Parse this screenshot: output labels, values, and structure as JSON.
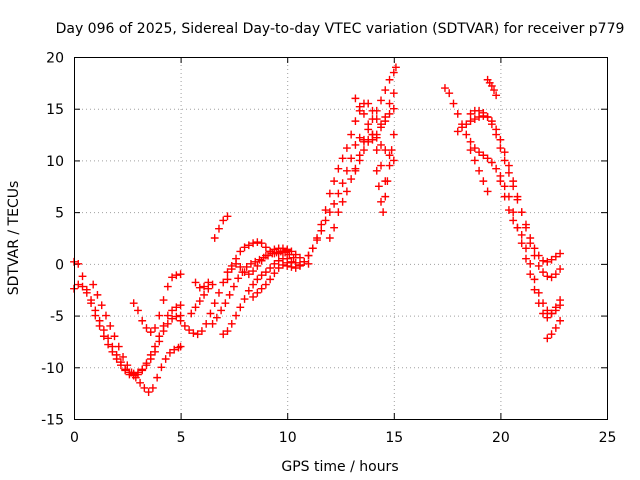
{
  "chart_data": {
    "type": "scatter",
    "title": "Day 096 of 2025, Sidereal Day-to-day VTEC variation (SDTVAR) for receiver p779",
    "xlabel": "GPS time / hours",
    "ylabel": "SDTVAR / TECUs",
    "xlim": [
      0,
      25
    ],
    "ylim": [
      -15,
      20
    ],
    "xticks": [
      0,
      5,
      10,
      15,
      20,
      25
    ],
    "yticks": [
      -15,
      -10,
      -5,
      0,
      5,
      10,
      15,
      20
    ],
    "xtick_labels": [
      "0",
      "5",
      "10",
      "15",
      "20",
      "25"
    ],
    "ytick_labels": [
      "-15",
      "-10",
      "-5",
      "0",
      "5",
      "10",
      "15",
      "20"
    ],
    "grid": true,
    "marker": "+",
    "marker_color": "#ff0000",
    "series": [
      {
        "x": [
          0.0,
          0.2,
          0.4,
          0.6,
          0.8,
          1.0,
          1.2,
          1.4,
          1.6,
          1.8,
          2.0,
          2.2,
          2.4,
          2.6,
          2.8,
          3.0,
          3.2,
          3.4,
          3.6,
          3.8,
          4.0,
          4.2,
          4.4,
          4.6,
          4.8,
          5.0
        ],
        "y": [
          0.2,
          0.0,
          -1.2,
          -2.5,
          -3.8,
          -5.0,
          -6.0,
          -7.0,
          -7.8,
          -8.5,
          -9.2,
          -9.8,
          -10.3,
          -10.7,
          -10.8,
          -10.7,
          -10.3,
          -9.6,
          -8.8,
          -8.0,
          -7.0,
          -6.0,
          -5.0,
          -4.5,
          -4.2,
          -4.0
        ]
      },
      {
        "x": [
          0.0,
          0.2,
          0.4,
          0.6,
          0.8,
          1.0,
          1.2,
          1.4,
          1.6,
          1.8,
          2.0,
          2.2,
          2.4,
          2.6,
          2.8,
          3.0,
          3.2,
          3.4,
          3.6,
          3.8,
          4.0,
          4.2,
          4.4,
          4.6,
          4.8,
          5.0
        ],
        "y": [
          -2.4,
          -2.0,
          -2.2,
          -2.8,
          -3.5,
          -4.5,
          -5.5,
          -6.4,
          -7.2,
          -8.0,
          -8.8,
          -9.5,
          -10.2,
          -10.5,
          -10.6,
          -10.5,
          -10.2,
          -9.8,
          -9.2,
          -8.5,
          -7.5,
          -6.5,
          -5.8,
          -5.3,
          -5.1,
          -5.0
        ]
      },
      {
        "x": [
          0.9,
          1.1,
          1.3,
          1.5,
          1.7,
          1.9,
          2.1,
          2.3,
          2.5,
          2.7,
          2.9,
          3.1,
          3.3,
          3.5,
          3.7,
          3.9,
          4.1,
          4.3,
          4.5,
          4.7,
          4.9,
          5.0
        ],
        "y": [
          -2.0,
          -3.0,
          -4.0,
          -5.0,
          -6.0,
          -7.0,
          -8.0,
          -9.0,
          -9.8,
          -10.5,
          -11.0,
          -11.5,
          -12.0,
          -12.4,
          -12.0,
          -11.0,
          -10.0,
          -9.2,
          -8.6,
          -8.3,
          -8.1,
          -8.0
        ]
      },
      {
        "x": [
          2.8,
          3.0,
          3.2,
          3.4,
          3.6,
          3.8,
          4.0,
          4.2,
          4.4,
          4.6,
          4.8,
          5.0
        ],
        "y": [
          -3.8,
          -4.5,
          -5.5,
          -6.2,
          -6.6,
          -6.2,
          -5.0,
          -3.5,
          -2.2,
          -1.3,
          -1.1,
          -1.0
        ]
      },
      {
        "x": [
          5.0,
          5.2,
          5.4,
          5.6,
          5.8,
          6.0,
          6.2,
          6.4,
          6.6,
          6.8,
          7.0,
          7.2,
          7.4,
          7.6,
          7.8,
          8.0,
          8.2,
          8.4,
          8.6,
          8.8,
          9.0,
          9.2,
          9.4,
          9.6,
          9.8,
          10.0
        ],
        "y": [
          -5.5,
          -6.0,
          -6.4,
          -6.7,
          -6.8,
          -6.5,
          -5.8,
          -4.8,
          -3.8,
          -2.8,
          -1.8,
          -0.8,
          -0.2,
          0.0,
          -0.3,
          -0.8,
          -1.0,
          -0.7,
          -0.2,
          0.3,
          0.8,
          1.2,
          1.4,
          1.5,
          1.5,
          1.4
        ]
      },
      {
        "x": [
          6.5,
          6.7,
          6.9,
          7.1,
          7.3,
          7.5,
          7.7,
          7.9,
          8.1,
          8.3,
          8.5,
          8.7,
          8.9,
          9.1,
          9.3,
          9.5,
          9.7,
          9.9,
          10.1,
          10.3
        ],
        "y": [
          -5.8,
          -5.2,
          -4.5,
          -3.8,
          -3.0,
          -2.2,
          -1.4,
          -0.8,
          -0.3,
          0.0,
          0.2,
          0.4,
          0.6,
          0.8,
          1.0,
          1.1,
          1.2,
          1.1,
          0.9,
          0.6
        ]
      },
      {
        "x": [
          7.0,
          7.2,
          7.4,
          7.6,
          7.8,
          8.0,
          8.2,
          8.4,
          8.6,
          8.8,
          9.0,
          9.2,
          9.4,
          9.6,
          9.8,
          10.0
        ],
        "y": [
          -6.8,
          -6.5,
          -5.8,
          -5.0,
          -4.2,
          -3.4,
          -2.6,
          -2.0,
          -1.5,
          -1.1,
          -0.8,
          -0.4,
          0.0,
          0.3,
          0.5,
          0.5
        ]
      },
      {
        "x": [
          8.4,
          8.6,
          8.8,
          9.0,
          9.2,
          9.4,
          9.6,
          9.8,
          10.0,
          10.2,
          10.4,
          10.6
        ],
        "y": [
          -3.2,
          -2.8,
          -2.4,
          -2.0,
          -1.5,
          -0.9,
          -0.4,
          -0.1,
          0.1,
          0.2,
          0.1,
          -0.1
        ]
      },
      {
        "x": [
          7.2,
          7.4,
          7.6,
          7.8,
          8.0,
          8.2,
          8.4,
          8.6,
          8.8,
          9.0,
          9.2,
          9.4,
          9.6,
          9.8,
          10.0,
          10.2,
          10.4,
          10.6,
          10.8,
          11.0
        ],
        "y": [
          -1.5,
          -0.5,
          0.5,
          1.2,
          1.6,
          1.8,
          2.0,
          2.1,
          2.0,
          1.6,
          1.2,
          1.0,
          1.0,
          1.2,
          1.3,
          1.2,
          0.9,
          0.6,
          0.2,
          0.0
        ]
      },
      {
        "x": [
          6.6,
          6.8,
          7.0,
          7.2
        ],
        "y": [
          2.5,
          3.4,
          4.2,
          4.6
        ]
      },
      {
        "x": [
          5.5,
          5.7,
          5.9,
          6.1,
          6.3,
          6.5
        ],
        "y": [
          -4.8,
          -4.2,
          -3.6,
          -3.0,
          -2.4,
          -2.0
        ]
      },
      {
        "x": [
          5.7,
          5.9,
          6.1,
          6.3
        ],
        "y": [
          -1.8,
          -2.3,
          -2.2,
          -1.8
        ]
      },
      {
        "x": [
          10.0,
          10.2,
          10.4,
          10.6,
          10.8,
          11.0,
          11.2,
          11.4,
          11.6,
          11.8,
          12.0,
          12.2,
          12.4,
          12.6,
          12.8,
          13.0,
          13.2,
          13.4,
          13.6,
          13.8,
          14.0,
          14.2,
          14.4,
          14.6,
          14.8,
          15.0
        ],
        "y": [
          -0.2,
          -0.3,
          -0.4,
          -0.2,
          0.2,
          0.8,
          1.5,
          2.5,
          3.8,
          5.2,
          6.8,
          8.0,
          9.2,
          10.2,
          11.2,
          12.5,
          13.8,
          14.8,
          15.5,
          15.5,
          14.8,
          14.0,
          13.5,
          13.8,
          14.5,
          15.0
        ]
      },
      {
        "x": [
          10.8,
          11.0,
          11.2,
          11.4,
          11.6,
          11.8,
          12.0,
          12.2,
          12.4,
          12.6,
          12.8,
          13.0,
          13.2,
          13.4,
          13.6,
          13.8,
          14.0,
          14.2,
          14.4,
          14.6,
          14.8,
          15.0
        ],
        "y": [
          0.2,
          0.8,
          1.5,
          2.3,
          3.2,
          4.2,
          5.0,
          5.8,
          6.8,
          7.8,
          9.0,
          10.2,
          11.5,
          12.2,
          12.0,
          11.8,
          12.0,
          12.5,
          13.2,
          14.2,
          15.5,
          16.5
        ]
      },
      {
        "x": [
          12.0,
          12.2,
          12.4,
          12.6,
          12.8,
          13.0,
          13.2,
          13.4,
          13.6,
          13.8,
          14.0,
          14.2,
          14.4,
          14.6,
          14.8,
          15.0,
          15.1
        ],
        "y": [
          2.5,
          3.5,
          5.0,
          6.0,
          7.0,
          8.2,
          9.2,
          10.5,
          11.8,
          13.0,
          14.0,
          14.8,
          15.8,
          16.8,
          17.8,
          18.5,
          19.0
        ]
      },
      {
        "x": [
          13.2,
          13.4,
          13.6,
          13.8,
          14.0,
          14.2,
          14.4,
          14.6,
          14.8,
          15.0
        ],
        "y": [
          9.0,
          10.0,
          11.0,
          12.0,
          12.5,
          12.2,
          11.5,
          11.0,
          10.5,
          10.0
        ]
      },
      {
        "x": [
          14.2,
          14.3,
          14.4,
          14.5,
          14.6,
          14.7,
          14.8,
          14.9,
          15.0
        ],
        "y": [
          9.0,
          7.5,
          6.0,
          5.0,
          6.5,
          8.0,
          9.5,
          11.0,
          12.5
        ]
      },
      {
        "x": [
          13.2,
          13.4,
          13.6,
          13.8,
          14.0,
          14.2,
          14.4,
          14.6
        ],
        "y": [
          16.0,
          15.2,
          14.5,
          13.5,
          12.5,
          11.0,
          9.5,
          8.0
        ]
      },
      {
        "x": [
          17.4,
          17.6,
          17.8,
          18.0,
          18.2,
          18.4,
          18.6,
          18.8,
          19.0,
          19.2,
          19.4,
          19.6,
          19.8,
          20.0,
          20.2,
          20.4,
          20.6,
          20.8,
          21.0,
          21.2,
          21.4,
          21.6,
          21.8,
          22.0,
          22.2,
          22.4,
          22.6,
          22.8
        ],
        "y": [
          17.0,
          16.5,
          15.5,
          14.5,
          13.5,
          12.5,
          11.8,
          11.2,
          10.8,
          10.5,
          10.2,
          9.8,
          9.2,
          8.5,
          7.5,
          6.5,
          5.0,
          3.5,
          2.0,
          0.5,
          -1.0,
          -2.5,
          -3.8,
          -4.8,
          -5.2,
          -4.8,
          -4.2,
          -3.5
        ]
      },
      {
        "x": [
          18.0,
          18.2,
          18.4,
          18.6,
          18.8,
          19.0,
          19.2,
          19.4,
          19.6,
          19.8,
          20.0,
          20.2,
          20.4,
          20.6,
          20.8,
          21.0,
          21.2,
          21.4,
          21.6,
          21.8,
          22.0,
          22.2,
          22.4,
          22.6,
          22.8
        ],
        "y": [
          12.8,
          13.2,
          13.5,
          13.8,
          14.0,
          14.2,
          14.3,
          14.2,
          13.8,
          13.0,
          12.0,
          10.8,
          9.5,
          8.0,
          6.5,
          5.0,
          3.5,
          2.0,
          0.8,
          -0.2,
          -0.8,
          -1.2,
          -1.3,
          -1.0,
          -0.5
        ]
      },
      {
        "x": [
          18.6,
          18.8,
          19.0,
          19.2,
          19.4,
          19.6,
          19.8,
          20.0,
          20.2,
          20.4,
          20.6,
          20.8,
          21.0,
          21.2,
          21.4,
          21.6,
          21.8,
          22.0,
          22.2,
          22.4,
          22.6,
          22.8
        ],
        "y": [
          14.5,
          14.8,
          14.8,
          14.6,
          14.2,
          13.5,
          12.5,
          11.2,
          10.0,
          8.8,
          7.5,
          6.2,
          5.0,
          3.8,
          2.5,
          1.5,
          0.8,
          0.3,
          0.2,
          0.4,
          0.7,
          1.0
        ]
      },
      {
        "x": [
          19.4,
          19.5,
          19.6,
          19.7,
          19.8
        ],
        "y": [
          17.8,
          17.5,
          17.2,
          16.8,
          16.3
        ]
      },
      {
        "x": [
          18.6,
          18.8,
          19.0,
          19.2,
          19.4
        ],
        "y": [
          11.0,
          10.0,
          9.0,
          8.0,
          7.0
        ]
      },
      {
        "x": [
          20.0,
          20.2,
          20.4,
          20.6,
          20.8,
          21.0,
          21.2,
          21.4,
          21.6,
          21.8,
          22.0,
          22.2,
          22.4,
          22.6,
          22.8
        ],
        "y": [
          8.0,
          6.5,
          5.2,
          4.2,
          3.5,
          2.8,
          1.5,
          0.0,
          -1.5,
          -2.8,
          -3.8,
          -4.5,
          -4.8,
          -4.5,
          -4.0
        ]
      },
      {
        "x": [
          22.2,
          22.4,
          22.6,
          22.8
        ],
        "y": [
          -7.2,
          -6.8,
          -6.2,
          -5.5
        ]
      }
    ]
  }
}
